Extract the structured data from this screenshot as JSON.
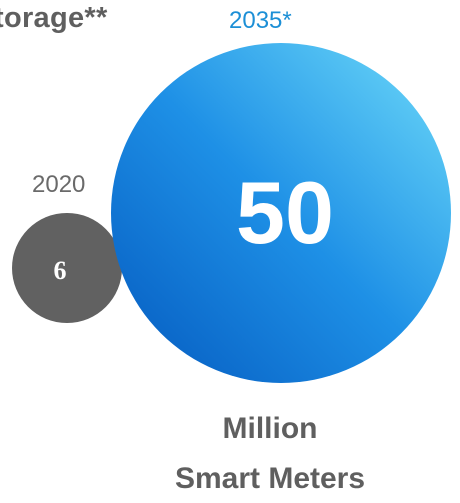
{
  "header": {
    "title_fragment": "torage**"
  },
  "chart_data": {
    "type": "bubble",
    "title": "torage**",
    "unit_lines": [
      "Million",
      "Smart Meters"
    ],
    "series": [
      {
        "name": "2020",
        "value": 6,
        "color": "#616161"
      },
      {
        "name": "2035*",
        "value": 50,
        "color": "#1e90e6"
      }
    ],
    "colors": {
      "year_2020_label": "#6a6a6a",
      "year_2035_label": "#1c8fd6",
      "bubble_2035_gradient": [
        "#0a66c8",
        "#1e90e6",
        "#5ccaf5"
      ],
      "bubble_2020": "#616161"
    }
  }
}
